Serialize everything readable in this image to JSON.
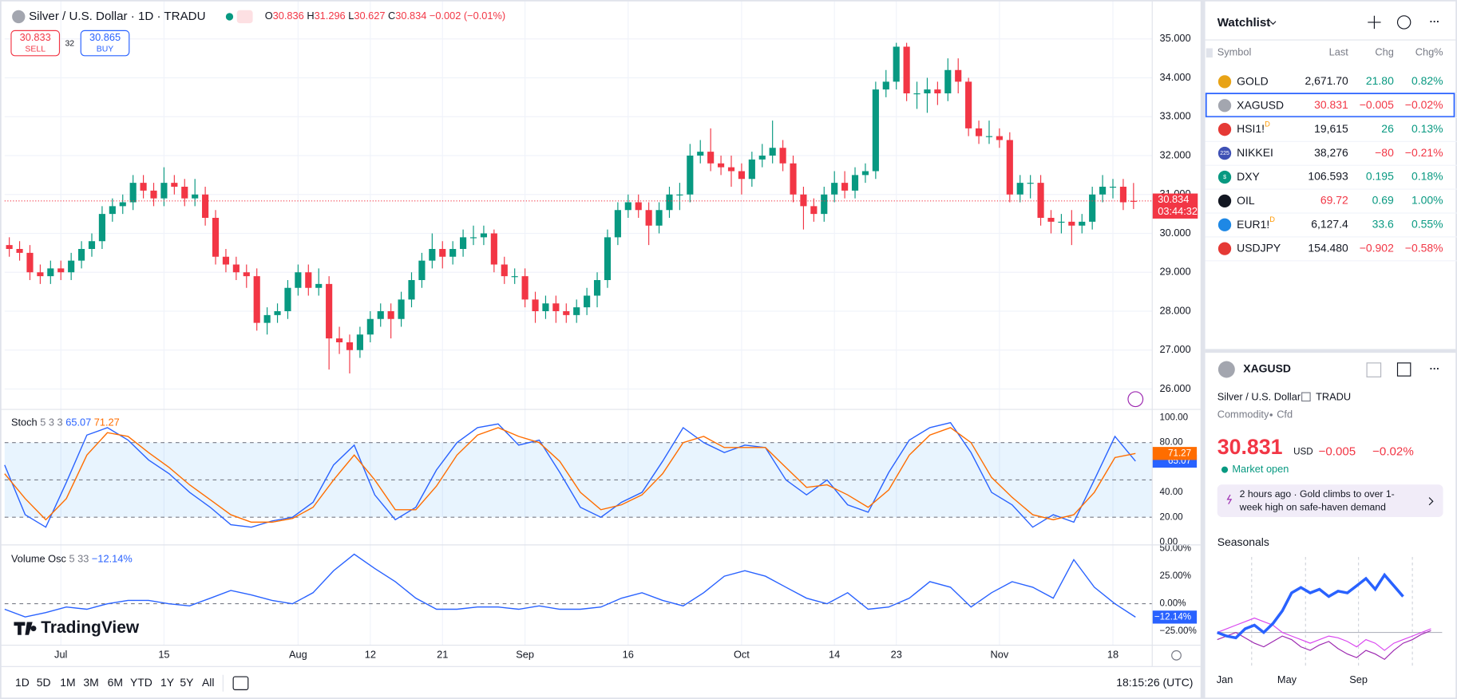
{
  "header": {
    "symbol": "Silver / U.S. Dollar · 1D · TRADU",
    "ohlc_labels": [
      "O",
      "H",
      "L",
      "C"
    ],
    "change": "−0.002 (−0.01%)",
    "sell_price": "30.833",
    "sell": "SELL",
    "spread": "32",
    "buy_price": "30.865",
    "buy": "BUY"
  },
  "chart": {
    "type": "candlestick",
    "up_color": "#089981",
    "down_color": "#f23645",
    "grid": true,
    "ylim": [
      25.5,
      36
    ],
    "yticks": [
      {
        "value": 26,
        "label": "26.000"
      },
      {
        "value": 27,
        "label": "27.000"
      },
      {
        "value": 28,
        "label": "28.000"
      },
      {
        "value": 29,
        "label": "29.000"
      },
      {
        "value": 30,
        "label": "30.000"
      },
      {
        "value": 31,
        "label": "31.000"
      },
      {
        "value": 32,
        "label": "32.000"
      },
      {
        "value": 33,
        "label": "33.000"
      },
      {
        "value": 34,
        "label": "34.000"
      },
      {
        "value": 35,
        "label": "35.000"
      }
    ],
    "xticks": [
      {
        "value": 5,
        "label": "Jul"
      },
      {
        "value": 15,
        "label": "15"
      },
      {
        "value": 28,
        "label": "Aug"
      },
      {
        "value": 35,
        "label": "12"
      },
      {
        "value": 42,
        "label": "21"
      },
      {
        "value": 50,
        "label": "Sep"
      },
      {
        "value": 60,
        "label": "16"
      },
      {
        "value": 71,
        "label": "Oct"
      },
      {
        "value": 80,
        "label": "14"
      },
      {
        "value": 86,
        "label": "23"
      },
      {
        "value": 96,
        "label": "Nov"
      },
      {
        "value": 107,
        "label": "18"
      }
    ],
    "countdown": "03:44:32",
    "logo": "TradingView",
    "candles": [
      [
        29.7,
        29.9,
        29.4,
        29.6
      ],
      [
        29.6,
        29.8,
        29.3,
        29.5
      ],
      [
        29.5,
        29.7,
        28.8,
        29.0
      ],
      [
        29.0,
        29.2,
        28.7,
        28.9
      ],
      [
        28.9,
        29.3,
        28.7,
        29.1
      ],
      [
        29.1,
        29.3,
        28.8,
        29.0
      ],
      [
        29.0,
        29.5,
        28.8,
        29.3
      ],
      [
        29.3,
        29.8,
        29.1,
        29.6
      ],
      [
        29.6,
        30.0,
        29.4,
        29.8
      ],
      [
        29.8,
        30.7,
        29.6,
        30.5
      ],
      [
        30.5,
        30.9,
        30.3,
        30.7
      ],
      [
        30.7,
        31.0,
        30.5,
        30.8
      ],
      [
        30.8,
        31.5,
        30.6,
        31.3
      ],
      [
        31.3,
        31.5,
        30.9,
        31.1
      ],
      [
        31.1,
        31.3,
        30.7,
        30.9
      ],
      [
        30.9,
        31.7,
        30.7,
        31.3
      ],
      [
        31.3,
        31.5,
        31.0,
        31.2
      ],
      [
        31.2,
        31.4,
        30.7,
        30.9
      ],
      [
        30.9,
        31.4,
        30.7,
        31.0
      ],
      [
        31.0,
        31.2,
        30.2,
        30.4
      ],
      [
        30.4,
        30.6,
        29.2,
        29.4
      ],
      [
        29.4,
        29.6,
        29.0,
        29.2
      ],
      [
        29.2,
        29.4,
        28.8,
        29.0
      ],
      [
        29.0,
        29.2,
        28.6,
        28.9
      ],
      [
        28.9,
        29.1,
        27.5,
        27.7
      ],
      [
        27.7,
        28.1,
        27.4,
        27.9
      ],
      [
        27.9,
        28.2,
        27.7,
        28.0
      ],
      [
        28.0,
        28.8,
        27.8,
        28.6
      ],
      [
        28.6,
        29.2,
        28.4,
        29.0
      ],
      [
        29.0,
        29.2,
        28.4,
        28.6
      ],
      [
        28.6,
        29.1,
        28.4,
        28.7
      ],
      [
        28.7,
        28.9,
        26.5,
        27.3
      ],
      [
        27.3,
        27.6,
        26.9,
        27.2
      ],
      [
        27.2,
        27.4,
        26.4,
        27.0
      ],
      [
        27.0,
        27.6,
        26.8,
        27.4
      ],
      [
        27.4,
        28.0,
        27.2,
        27.8
      ],
      [
        27.8,
        28.2,
        27.6,
        28.0
      ],
      [
        28.0,
        28.2,
        27.3,
        27.8
      ],
      [
        27.8,
        28.5,
        27.6,
        28.3
      ],
      [
        28.3,
        29.0,
        28.1,
        28.8
      ],
      [
        28.8,
        29.5,
        28.6,
        29.3
      ],
      [
        29.3,
        30.0,
        29.1,
        29.6
      ],
      [
        29.6,
        29.8,
        29.1,
        29.4
      ],
      [
        29.4,
        29.8,
        29.2,
        29.6
      ],
      [
        29.6,
        30.1,
        29.4,
        29.9
      ],
      [
        29.9,
        30.2,
        29.7,
        29.9
      ],
      [
        29.9,
        30.2,
        29.7,
        30.0
      ],
      [
        30.0,
        30.1,
        29.0,
        29.2
      ],
      [
        29.2,
        29.4,
        28.7,
        28.9
      ],
      [
        28.9,
        29.1,
        28.7,
        28.9
      ],
      [
        28.9,
        29.1,
        28.1,
        28.3
      ],
      [
        28.3,
        28.5,
        27.7,
        28.0
      ],
      [
        28.0,
        28.4,
        27.8,
        28.2
      ],
      [
        28.2,
        28.4,
        27.7,
        28.0
      ],
      [
        28.0,
        28.2,
        27.7,
        27.9
      ],
      [
        27.9,
        28.3,
        27.7,
        28.1
      ],
      [
        28.1,
        28.6,
        27.9,
        28.4
      ],
      [
        28.4,
        29.0,
        28.1,
        28.8
      ],
      [
        28.8,
        30.1,
        28.6,
        29.9
      ],
      [
        29.9,
        30.8,
        29.7,
        30.6
      ],
      [
        30.6,
        31.0,
        30.4,
        30.8
      ],
      [
        30.8,
        31.0,
        30.4,
        30.6
      ],
      [
        30.6,
        30.8,
        29.7,
        30.2
      ],
      [
        30.2,
        30.8,
        30.0,
        30.6
      ],
      [
        30.6,
        31.2,
        30.4,
        31.0
      ],
      [
        31.0,
        31.3,
        30.6,
        31.0
      ],
      [
        31.0,
        32.3,
        30.8,
        32.0
      ],
      [
        32.0,
        32.4,
        31.8,
        32.1
      ],
      [
        32.1,
        32.7,
        31.6,
        31.8
      ],
      [
        31.8,
        32.0,
        31.5,
        31.7
      ],
      [
        31.7,
        32.0,
        31.2,
        31.6
      ],
      [
        31.6,
        31.8,
        31.0,
        31.4
      ],
      [
        31.4,
        32.1,
        31.2,
        31.9
      ],
      [
        31.9,
        32.3,
        31.7,
        32.0
      ],
      [
        32.0,
        32.9,
        31.8,
        32.2
      ],
      [
        32.2,
        32.4,
        31.6,
        31.8
      ],
      [
        31.8,
        32.0,
        30.8,
        31.0
      ],
      [
        31.0,
        31.2,
        30.1,
        30.7
      ],
      [
        30.7,
        30.9,
        30.3,
        30.5
      ],
      [
        30.5,
        31.2,
        30.3,
        31.0
      ],
      [
        31.0,
        31.6,
        30.8,
        31.3
      ],
      [
        31.3,
        31.6,
        30.9,
        31.1
      ],
      [
        31.1,
        31.7,
        30.9,
        31.5
      ],
      [
        31.5,
        31.8,
        31.3,
        31.6
      ],
      [
        31.6,
        33.9,
        31.4,
        33.7
      ],
      [
        33.7,
        34.2,
        33.5,
        33.9
      ],
      [
        33.9,
        34.9,
        33.7,
        34.8
      ],
      [
        34.8,
        34.9,
        33.4,
        33.6
      ],
      [
        33.6,
        33.9,
        33.2,
        33.6
      ],
      [
        33.6,
        34.0,
        33.1,
        33.7
      ],
      [
        33.7,
        33.9,
        33.3,
        33.6
      ],
      [
        33.6,
        34.5,
        33.4,
        34.2
      ],
      [
        34.2,
        34.5,
        33.6,
        33.9
      ],
      [
        33.9,
        34.0,
        32.5,
        32.7
      ],
      [
        32.7,
        32.9,
        32.3,
        32.5
      ],
      [
        32.5,
        32.9,
        32.3,
        32.5
      ],
      [
        32.5,
        32.7,
        32.2,
        32.4
      ],
      [
        32.4,
        32.6,
        30.8,
        31.0
      ],
      [
        31.0,
        31.5,
        30.8,
        31.3
      ],
      [
        31.3,
        31.5,
        30.9,
        31.3
      ],
      [
        31.3,
        31.5,
        30.2,
        30.4
      ],
      [
        30.4,
        30.6,
        30.0,
        30.3
      ],
      [
        30.3,
        30.5,
        30.0,
        30.3
      ],
      [
        30.3,
        30.6,
        29.7,
        30.2
      ],
      [
        30.2,
        30.5,
        30.0,
        30.3
      ],
      [
        30.3,
        31.2,
        30.1,
        31.0
      ],
      [
        31.0,
        31.5,
        30.8,
        31.2
      ],
      [
        31.2,
        31.4,
        30.9,
        31.2
      ],
      [
        31.2,
        31.4,
        30.6,
        30.8
      ],
      [
        30.836,
        31.296,
        30.627,
        30.834
      ]
    ]
  },
  "stoch": {
    "name": "Stoch",
    "params": "5 3 3",
    "ylim": [
      -1.5,
      105.2
    ],
    "bands": [
      20,
      50,
      80
    ],
    "band_color": "#2196f3",
    "yticks": [
      {
        "value": 0,
        "label": "0.00"
      },
      {
        "value": 20,
        "label": "20.00"
      },
      {
        "value": 40,
        "label": "40.00"
      },
      {
        "value": 80,
        "label": "80.00"
      },
      {
        "value": 100,
        "label": "100.00"
      }
    ],
    "series": [
      {
        "color": "#2962ff",
        "values": [
          62,
          22,
          12,
          48,
          86,
          92,
          82,
          66,
          55,
          40,
          28,
          14,
          12,
          17,
          20,
          32,
          62,
          78,
          38,
          18,
          28,
          58,
          80,
          92,
          95,
          78,
          82,
          56,
          28,
          20,
          32,
          40,
          65,
          92,
          80,
          72,
          78,
          76,
          50,
          38,
          50,
          30,
          24,
          56,
          82,
          92,
          96,
          72,
          40,
          30,
          12,
          22,
          16,
          50,
          85,
          65.07
        ]
      },
      {
        "color": "#ff6d00",
        "values": [
          55,
          35,
          18,
          35,
          70,
          88,
          85,
          72,
          60,
          46,
          34,
          22,
          16,
          16,
          19,
          28,
          50,
          70,
          50,
          26,
          26,
          45,
          70,
          86,
          92,
          85,
          80,
          65,
          40,
          26,
          30,
          38,
          55,
          80,
          85,
          76,
          76,
          76,
          60,
          44,
          46,
          38,
          28,
          42,
          70,
          86,
          92,
          80,
          52,
          36,
          22,
          18,
          22,
          40,
          68,
          71.27
        ]
      }
    ]
  },
  "volosc": {
    "name": "Volume Osc",
    "params": "5 33",
    "ylim": [
      -37.6,
      51.7
    ],
    "bands": [
      0
    ],
    "yticks": [
      {
        "value": -25,
        "label": "−25.00%"
      },
      {
        "value": 0,
        "label": "0.00%"
      },
      {
        "value": 25,
        "label": "25.00%"
      },
      {
        "value": 50,
        "label": "50.00%"
      }
    ],
    "series": [
      {
        "color": "#2962ff",
        "values": [
          -5,
          -12,
          -8,
          -3,
          -5,
          0,
          3,
          3,
          0,
          -2,
          5,
          12,
          8,
          3,
          0,
          10,
          30,
          45,
          32,
          20,
          5,
          -5,
          -5,
          -3,
          -3,
          -5,
          -2,
          -5,
          -5,
          -3,
          5,
          10,
          3,
          -2,
          10,
          25,
          30,
          25,
          15,
          5,
          0,
          10,
          -5,
          -3,
          5,
          20,
          15,
          -3,
          10,
          20,
          15,
          5,
          40,
          15,
          0,
          -12.14
        ],
        "value_labels": [
          null,
          null,
          null,
          null,
          null,
          null,
          null,
          null,
          null,
          null,
          null,
          null,
          null,
          null,
          null,
          null,
          null,
          null,
          null,
          null,
          null,
          null,
          null,
          null,
          null,
          null,
          null,
          null,
          null,
          null,
          null,
          null,
          null,
          null,
          null,
          null,
          null,
          null,
          null,
          null,
          null,
          null,
          null,
          null,
          null,
          null,
          null,
          null,
          null,
          null,
          null,
          null,
          null,
          null,
          null,
          "−12.14%"
        ]
      }
    ]
  },
  "toolbar": {
    "ranges": [
      "1D",
      "5D",
      "1M",
      "3M",
      "6M",
      "YTD",
      "1Y",
      "5Y",
      "All"
    ],
    "clock": "18:15:26 (UTC)"
  },
  "watchlist": {
    "title": "Watchlist",
    "columns": [
      "Symbol",
      "Last",
      "Chg",
      "Chg%"
    ],
    "rows": [
      {
        "symbol": "GOLD",
        "last": "2,671.70",
        "chg": "21.80",
        "chgpct": "0.82%",
        "last_color": "#131722",
        "chg_color": "#089981",
        "icon_color": "#e8a317"
      },
      {
        "symbol": "XAGUSD",
        "last": "30.831",
        "chg": "−0.005",
        "chgpct": "−0.02%",
        "last_color": "#f23645",
        "chg_color": "#f23645",
        "icon_color": "#a3a6af"
      },
      {
        "symbol": "HSI1!",
        "flag": "D",
        "last": "19,615",
        "chg": "26",
        "chgpct": "0.13%",
        "last_color": "#131722",
        "chg_color": "#089981",
        "icon_color": "#e53935"
      },
      {
        "symbol": "NIKKEI",
        "icon_text": "225",
        "last": "38,276",
        "chg": "−80",
        "chgpct": "−0.21%",
        "last_color": "#131722",
        "chg_color": "#f23645",
        "icon_color": "#3f51b5"
      },
      {
        "symbol": "DXY",
        "icon_text": "$",
        "last": "106.593",
        "chg": "0.195",
        "chgpct": "0.18%",
        "last_color": "#131722",
        "chg_color": "#089981",
        "icon_color": "#089981"
      },
      {
        "symbol": "OIL",
        "last": "69.72",
        "chg": "0.69",
        "chgpct": "1.00%",
        "last_color": "#f23645",
        "chg_color": "#089981",
        "icon_color": "#131722"
      },
      {
        "symbol": "EUR1!",
        "flag": "D",
        "last": "6,127.4",
        "chg": "33.6",
        "chgpct": "0.55%",
        "last_color": "#131722",
        "chg_color": "#089981",
        "icon_color": "#1e88e5"
      },
      {
        "symbol": "USDJPY",
        "last": "154.480",
        "chg": "−0.902",
        "chgpct": "−0.58%",
        "last_color": "#131722",
        "chg_color": "#f23645",
        "icon_color": "#e53935"
      }
    ]
  },
  "detail": {
    "symbol": "XAGUSD",
    "name": "Silver / U.S. Dollar",
    "exchange": "TRADU",
    "category": "Commodity",
    "subtype": "Cfd",
    "price": "30.831",
    "currency": "USD",
    "chg": "−0.005",
    "chgpct": "−0.02%",
    "status": "Market open",
    "news_time": "2 hours ago",
    "news_lines": [
      "Gold climbs to over 1-",
      "week high on safe-haven demand"
    ],
    "seasonals": {
      "title": "Seasonals",
      "months": [
        "Jan",
        "May",
        "Sep"
      ],
      "ylim": [
        -20,
        42
      ],
      "series": [
        {
          "color": "#2962ff",
          "values": [
            0,
            -2,
            -3,
            2,
            4,
            0,
            5,
            12,
            22,
            25,
            22,
            24,
            20,
            23,
            22,
            26,
            30,
            24,
            32,
            26,
            20
          ]
        },
        {
          "color": "#d946ef",
          "values": [
            0,
            2,
            4,
            6,
            8,
            6,
            4,
            0,
            -2,
            -4,
            -6,
            -4,
            -2,
            -3,
            -5,
            -8,
            -4,
            -6,
            -10,
            -6,
            -4,
            -2,
            0,
            2
          ]
        },
        {
          "color": "#9c27b0",
          "values": [
            -4,
            -2,
            0,
            -3,
            -6,
            -8,
            -5,
            -2,
            -4,
            -8,
            -10,
            -7,
            -5,
            -9,
            -12,
            -14,
            -10,
            -12,
            -15,
            -10,
            -6,
            -4,
            -1,
            1
          ]
        }
      ]
    }
  }
}
